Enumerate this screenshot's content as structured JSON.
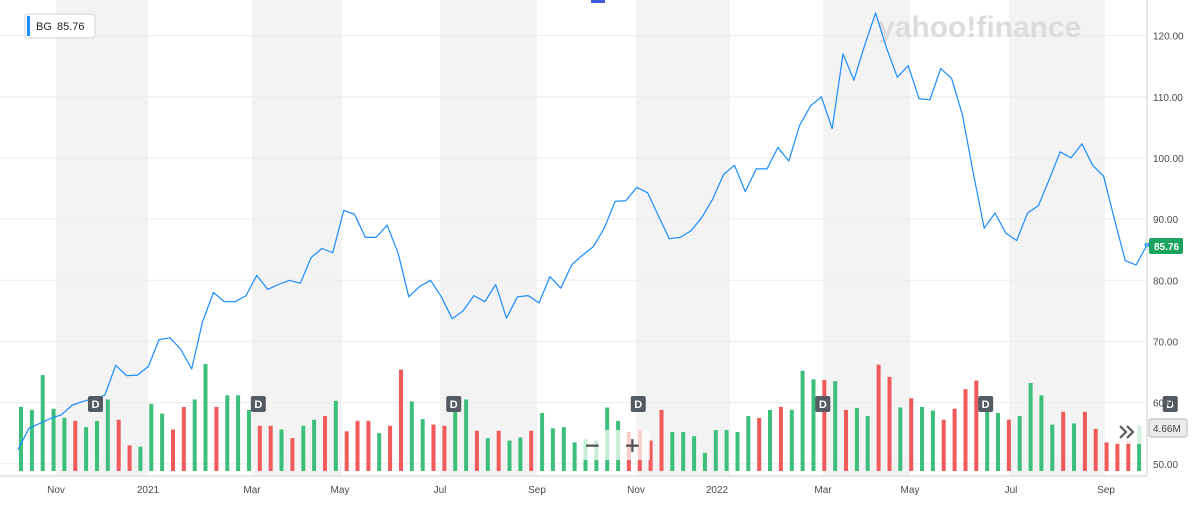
{
  "ticker": {
    "symbol": "BG",
    "price": "85.76"
  },
  "watermark": "yahoo!finance",
  "volume_label": "4.66M",
  "dividend_marker": "D",
  "zoom": {
    "out": "−",
    "in": "+"
  },
  "more_icon": "double-chevron-right-icon",
  "colors": {
    "line": "#1a8cff",
    "up": "#3cbf7a",
    "down": "#f05a5a",
    "band": "#f3f3f3",
    "price_badge": "#1aa35f"
  },
  "chart_data": {
    "type": "line",
    "title": "",
    "xlabel": "",
    "ylabel": "",
    "ylim": [
      48,
      125
    ],
    "yticks": [
      "120.00",
      "110.00",
      "100.00",
      "90.00",
      "80.00",
      "70.00",
      "60.00",
      "50.00"
    ],
    "xticks": [
      "Nov",
      "2021",
      "Mar",
      "May",
      "Jul",
      "Sep",
      "Nov",
      "2022",
      "Mar",
      "May",
      "Jul",
      "Sep"
    ],
    "price": [
      52.3,
      55.8,
      56.6,
      57.4,
      58.0,
      59.6,
      60.2,
      60.7,
      61.2,
      66.1,
      64.4,
      64.5,
      65.9,
      70.3,
      70.6,
      68.7,
      65.5,
      73.2,
      78.0,
      76.5,
      76.5,
      77.5,
      80.8,
      78.5,
      79.3,
      80.0,
      79.5,
      83.7,
      85.2,
      84.5,
      91.4,
      90.8,
      87.0,
      87.0,
      89.0,
      84.5,
      77.3,
      79.0,
      80.0,
      77.3,
      73.7,
      75.0,
      77.5,
      76.5,
      79.3,
      73.8,
      77.3,
      77.5,
      76.3,
      80.6,
      78.7,
      82.5,
      84.1,
      85.5,
      88.5,
      92.9,
      93.0,
      95.2,
      94.3,
      90.5,
      86.8,
      87.0,
      88.1,
      90.3,
      93.3,
      97.3,
      98.8,
      94.5,
      98.2,
      98.2,
      101.7,
      99.5,
      105.3,
      108.5,
      110.0,
      104.8,
      117.0,
      112.7,
      118.5,
      123.7,
      118.0,
      113.2,
      115.1,
      109.7,
      109.5,
      114.6,
      113.0,
      107.0,
      97.5,
      88.5,
      91.0,
      87.7,
      86.5,
      91.0,
      92.2,
      96.5,
      101.0,
      100.0,
      102.3,
      98.8,
      97.0,
      90.0,
      83.2,
      82.5,
      85.76
    ],
    "volume_scale": [
      48,
      68
    ],
    "volume": [
      {
        "v": 59.3,
        "up": true
      },
      {
        "v": 58.8,
        "up": true
      },
      {
        "v": 64.5,
        "up": true
      },
      {
        "v": 59.0,
        "up": true
      },
      {
        "v": 57.5,
        "up": true
      },
      {
        "v": 57.0,
        "up": false
      },
      {
        "v": 56.0,
        "up": true
      },
      {
        "v": 57.0,
        "up": true
      },
      {
        "v": 60.5,
        "up": true
      },
      {
        "v": 57.2,
        "up": false
      },
      {
        "v": 53.0,
        "up": false
      },
      {
        "v": 52.8,
        "up": true
      },
      {
        "v": 59.8,
        "up": true
      },
      {
        "v": 58.2,
        "up": true
      },
      {
        "v": 55.6,
        "up": false
      },
      {
        "v": 59.3,
        "up": false
      },
      {
        "v": 60.5,
        "up": true
      },
      {
        "v": 66.3,
        "up": true
      },
      {
        "v": 59.3,
        "up": false
      },
      {
        "v": 61.2,
        "up": true
      },
      {
        "v": 61.2,
        "up": true
      },
      {
        "v": 58.8,
        "up": true
      },
      {
        "v": 56.2,
        "up": false
      },
      {
        "v": 56.2,
        "up": false
      },
      {
        "v": 55.6,
        "up": true
      },
      {
        "v": 54.2,
        "up": false
      },
      {
        "v": 56.2,
        "up": true
      },
      {
        "v": 57.2,
        "up": true
      },
      {
        "v": 57.8,
        "up": false
      },
      {
        "v": 60.3,
        "up": true
      },
      {
        "v": 55.3,
        "up": false
      },
      {
        "v": 57.0,
        "up": false
      },
      {
        "v": 57.0,
        "up": false
      },
      {
        "v": 55.0,
        "up": true
      },
      {
        "v": 56.2,
        "up": false
      },
      {
        "v": 65.4,
        "up": false
      },
      {
        "v": 60.2,
        "up": true
      },
      {
        "v": 57.3,
        "up": true
      },
      {
        "v": 56.4,
        "up": false
      },
      {
        "v": 56.2,
        "up": false
      },
      {
        "v": 59.1,
        "up": true
      },
      {
        "v": 60.5,
        "up": true
      },
      {
        "v": 55.4,
        "up": false
      },
      {
        "v": 54.2,
        "up": true
      },
      {
        "v": 55.4,
        "up": false
      },
      {
        "v": 53.8,
        "up": true
      },
      {
        "v": 54.3,
        "up": true
      },
      {
        "v": 55.4,
        "up": false
      },
      {
        "v": 58.3,
        "up": true
      },
      {
        "v": 55.8,
        "up": true
      },
      {
        "v": 56.0,
        "up": true
      },
      {
        "v": 53.5,
        "up": true
      },
      {
        "v": 54.0,
        "up": true
      },
      {
        "v": 53.8,
        "up": true
      },
      {
        "v": 59.2,
        "up": true
      },
      {
        "v": 57.0,
        "up": true
      },
      {
        "v": 55.2,
        "up": false
      },
      {
        "v": 55.5,
        "up": false
      },
      {
        "v": 53.8,
        "up": false
      },
      {
        "v": 58.8,
        "up": false
      },
      {
        "v": 55.2,
        "up": true
      },
      {
        "v": 55.2,
        "up": true
      },
      {
        "v": 54.5,
        "up": true
      },
      {
        "v": 51.8,
        "up": true
      },
      {
        "v": 55.5,
        "up": true
      },
      {
        "v": 55.5,
        "up": true
      },
      {
        "v": 55.2,
        "up": true
      },
      {
        "v": 57.8,
        "up": true
      },
      {
        "v": 57.5,
        "up": false
      },
      {
        "v": 58.8,
        "up": true
      },
      {
        "v": 59.3,
        "up": false
      },
      {
        "v": 58.8,
        "up": true
      },
      {
        "v": 65.2,
        "up": true
      },
      {
        "v": 63.8,
        "up": true
      },
      {
        "v": 63.7,
        "up": false
      },
      {
        "v": 63.5,
        "up": true
      },
      {
        "v": 58.8,
        "up": false
      },
      {
        "v": 59.1,
        "up": true
      },
      {
        "v": 57.8,
        "up": true
      },
      {
        "v": 66.2,
        "up": false
      },
      {
        "v": 64.2,
        "up": false
      },
      {
        "v": 59.2,
        "up": true
      },
      {
        "v": 60.7,
        "up": false
      },
      {
        "v": 59.3,
        "up": true
      },
      {
        "v": 58.7,
        "up": true
      },
      {
        "v": 57.2,
        "up": false
      },
      {
        "v": 59.0,
        "up": false
      },
      {
        "v": 62.2,
        "up": false
      },
      {
        "v": 63.6,
        "up": false
      },
      {
        "v": 59.6,
        "up": true
      },
      {
        "v": 58.3,
        "up": true
      },
      {
        "v": 57.2,
        "up": false
      },
      {
        "v": 57.8,
        "up": true
      },
      {
        "v": 63.2,
        "up": true
      },
      {
        "v": 61.2,
        "up": true
      },
      {
        "v": 56.4,
        "up": true
      },
      {
        "v": 58.5,
        "up": false
      },
      {
        "v": 56.6,
        "up": true
      },
      {
        "v": 58.5,
        "up": false
      },
      {
        "v": 55.7,
        "up": false
      },
      {
        "v": 53.5,
        "up": false
      },
      {
        "v": 53.5,
        "up": false
      },
      {
        "v": 53.7,
        "up": false
      },
      {
        "v": 56.3,
        "up": true
      }
    ],
    "dividends_at": [
      7,
      22,
      40,
      57,
      74,
      89,
      106,
      121
    ]
  }
}
